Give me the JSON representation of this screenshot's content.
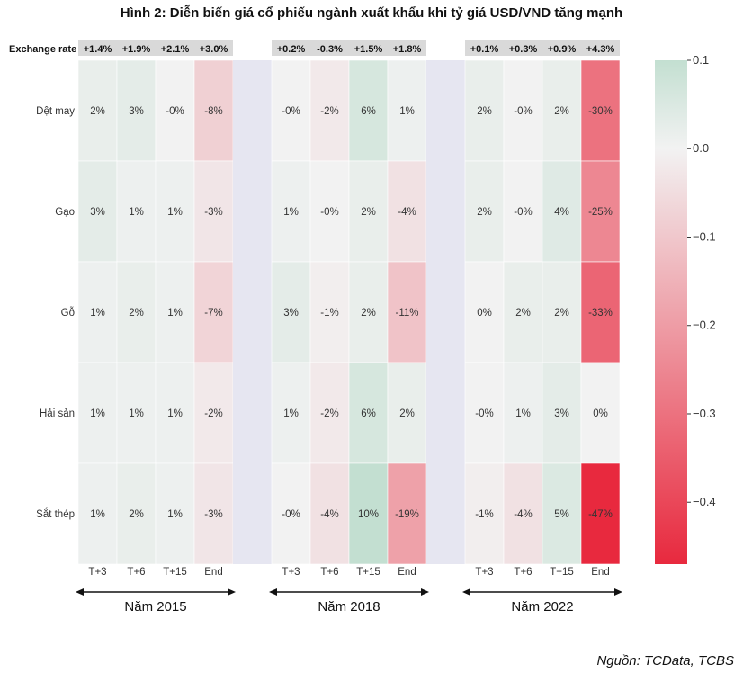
{
  "title": "Hình 2: Diễn biến giá cổ phiếu ngành xuất khẩu khi tỷ giá USD/VND tăng mạnh",
  "source": "Nguồn: TCData, TCBS",
  "exchange_rate_label": "Exchange rate",
  "chart_data": {
    "type": "heatmap",
    "title": "Hình 2: Diễn biến giá cổ phiếu ngành xuất khẩu khi tỷ giá USD/VND tăng mạnh",
    "rows": [
      "Dệt may",
      "Gạo",
      "Gỗ",
      "Hải sản",
      "Sắt thép"
    ],
    "groups": [
      {
        "name": "Năm 2015",
        "columns": [
          "T+3",
          "T+6",
          "T+15",
          "End"
        ],
        "exchange_rate": [
          "+1.4%",
          "+1.9%",
          "+2.1%",
          "+3.0%"
        ],
        "values": [
          [
            0.02,
            0.03,
            -0.0,
            -0.08
          ],
          [
            0.03,
            0.01,
            0.01,
            -0.03
          ],
          [
            0.01,
            0.02,
            0.01,
            -0.07
          ],
          [
            0.01,
            0.01,
            0.01,
            -0.02
          ],
          [
            0.01,
            0.02,
            0.01,
            -0.03
          ]
        ],
        "labels": [
          [
            "2%",
            "3%",
            "-0%",
            "-8%"
          ],
          [
            "3%",
            "1%",
            "1%",
            "-3%"
          ],
          [
            "1%",
            "2%",
            "1%",
            "-7%"
          ],
          [
            "1%",
            "1%",
            "1%",
            "-2%"
          ],
          [
            "1%",
            "2%",
            "1%",
            "-3%"
          ]
        ]
      },
      {
        "name": "Năm 2018",
        "columns": [
          "T+3",
          "T+6",
          "T+15",
          "End"
        ],
        "exchange_rate": [
          "+0.2%",
          "-0.3%",
          "+1.5%",
          "+1.8%"
        ],
        "values": [
          [
            -0.0,
            -0.02,
            0.06,
            0.01
          ],
          [
            0.01,
            -0.0,
            0.02,
            -0.04
          ],
          [
            0.03,
            -0.01,
            0.02,
            -0.11
          ],
          [
            0.01,
            -0.02,
            0.06,
            0.02
          ],
          [
            -0.0,
            -0.04,
            0.1,
            -0.19
          ]
        ],
        "labels": [
          [
            "-0%",
            "-2%",
            "6%",
            "1%"
          ],
          [
            "1%",
            "-0%",
            "2%",
            "-4%"
          ],
          [
            "3%",
            "-1%",
            "2%",
            "-11%"
          ],
          [
            "1%",
            "-2%",
            "6%",
            "2%"
          ],
          [
            "-0%",
            "-4%",
            "10%",
            "-19%"
          ]
        ]
      },
      {
        "name": "Năm 2022",
        "columns": [
          "T+3",
          "T+6",
          "T+15",
          "End"
        ],
        "exchange_rate": [
          "+0.1%",
          "+0.3%",
          "+0.9%",
          "+4.3%"
        ],
        "values": [
          [
            0.02,
            -0.0,
            0.02,
            -0.3
          ],
          [
            0.02,
            -0.0,
            0.04,
            -0.25
          ],
          [
            0.0,
            0.02,
            0.02,
            -0.33
          ],
          [
            -0.0,
            0.01,
            0.03,
            0.0
          ],
          [
            -0.01,
            -0.04,
            0.05,
            -0.47
          ]
        ],
        "labels": [
          [
            "2%",
            "-0%",
            "2%",
            "-30%"
          ],
          [
            "2%",
            "-0%",
            "4%",
            "-25%"
          ],
          [
            "0%",
            "2%",
            "2%",
            "-33%"
          ],
          [
            "-0%",
            "1%",
            "3%",
            "0%"
          ],
          [
            "-1%",
            "-4%",
            "5%",
            "-47%"
          ]
        ]
      }
    ],
    "colorbar": {
      "vmin": -0.47,
      "vmax": 0.1,
      "ticks": [
        0.1,
        0.0,
        -0.1,
        -0.2,
        -0.3,
        -0.4
      ],
      "tick_labels": [
        "0.1",
        "0.0",
        "−0.1",
        "−0.2",
        "−0.3",
        "−0.4"
      ],
      "colors": {
        "positive": "#c3dfd1",
        "neutral": "#f2f2f2",
        "negative": "#e8293e"
      }
    },
    "separator_color": "#e6e6f1",
    "header_band_color": "#d9d9d9"
  }
}
